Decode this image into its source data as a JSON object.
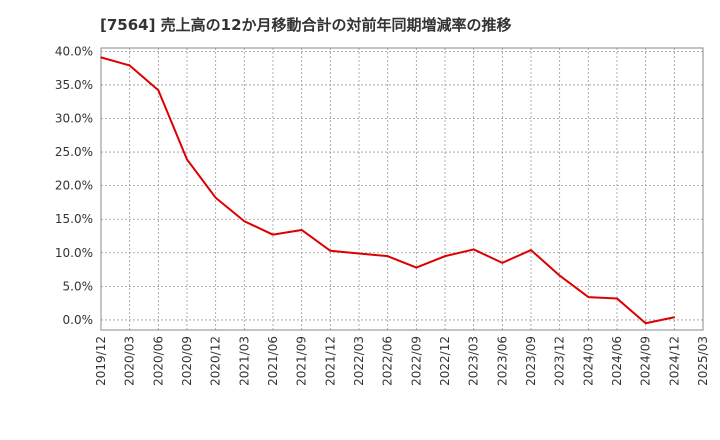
{
  "colors": {
    "series": "#dd0000",
    "grid": "#999999",
    "frame": "#888888",
    "text": "#333333"
  },
  "chart_data": {
    "type": "line",
    "title": "[7564]  売上高の12か月移動合計の対前年同期増減率の推移",
    "xlabel": "",
    "ylabel": "",
    "ylim": [
      -1.5,
      40.5
    ],
    "y_ticks": [
      "40.0%",
      "35.0%",
      "30.0%",
      "25.0%",
      "20.0%",
      "15.0%",
      "10.0%",
      "5.0%",
      "0.0%"
    ],
    "y_tick_values": [
      40,
      35,
      30,
      25,
      20,
      15,
      10,
      5,
      0
    ],
    "categories": [
      "2019/12",
      "2020/03",
      "2020/06",
      "2020/09",
      "2020/12",
      "2021/03",
      "2021/06",
      "2021/09",
      "2021/12",
      "2022/03",
      "2022/06",
      "2022/09",
      "2022/12",
      "2023/03",
      "2023/06",
      "2023/09",
      "2023/12",
      "2024/03",
      "2024/06",
      "2024/09",
      "2024/12",
      "2025/03"
    ],
    "series": [
      {
        "name": "対前年同期増減率",
        "values": [
          39.1,
          37.9,
          34.2,
          23.9,
          18.2,
          14.7,
          12.7,
          13.4,
          10.3,
          9.9,
          9.5,
          7.8,
          9.5,
          10.5,
          8.5,
          10.4,
          6.6,
          3.4,
          3.2,
          -0.5,
          0.4,
          null
        ]
      }
    ]
  }
}
